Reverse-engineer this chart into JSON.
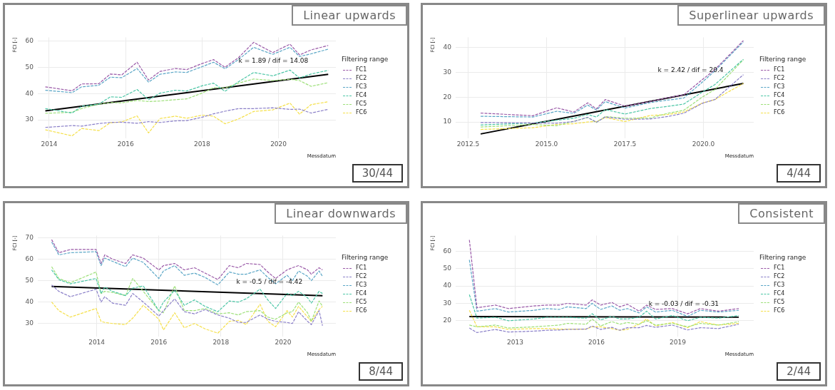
{
  "chart_data": [
    {
      "type": "line",
      "title": "Linear upwards",
      "ylabel": "FCI [-]",
      "xlabel": "Messdatum",
      "legend_title": "Filtering range",
      "legend": "right",
      "grid": true,
      "marker": "none",
      "line_style": "dashed",
      "xlim": [
        2013.7,
        2021.5
      ],
      "ylim": [
        23,
        61.5
      ],
      "xticks": [
        2014,
        2016,
        2018,
        2020
      ],
      "yticks": [
        30,
        40,
        50,
        60
      ],
      "x": [
        2013.9,
        2014.6,
        2014.85,
        2015.3,
        2015.6,
        2015.9,
        2016.3,
        2016.6,
        2016.9,
        2017.3,
        2017.6,
        2018.0,
        2018.3,
        2018.6,
        2018.95,
        2019.35,
        2019.85,
        2020.3,
        2020.55,
        2020.85,
        2021.3
      ],
      "series": [
        {
          "name": "FC1",
          "color": "#9a5aa8",
          "values": [
            42.6,
            41.1,
            43.7,
            43.8,
            47.5,
            47.2,
            52,
            45.2,
            48.5,
            49.6,
            49.2,
            51.5,
            53,
            50.1,
            53.7,
            59.6,
            55.7,
            58.9,
            54.8,
            56.7,
            58.4
          ]
        },
        {
          "name": "FC2",
          "color": "#8a7fc8",
          "values": [
            27.1,
            27.8,
            27.6,
            28.6,
            29.0,
            29.1,
            28.7,
            29.3,
            29.0,
            29.6,
            29.7,
            31.0,
            32.3,
            33.3,
            34.3,
            34.3,
            34.6,
            34.0,
            34.1,
            32.6,
            34.0
          ]
        },
        {
          "name": "FC3",
          "color": "#5aa6c6",
          "values": [
            41.3,
            40.4,
            42.6,
            43.2,
            46.3,
            46.1,
            49.6,
            44.4,
            47.4,
            48.3,
            48.1,
            50.3,
            52.0,
            49.5,
            53.0,
            57.7,
            55.0,
            57.7,
            54.2,
            55.2,
            57.0
          ]
        },
        {
          "name": "FC4",
          "color": "#4cc6a6",
          "values": [
            34.3,
            32.6,
            35.2,
            36.0,
            38.8,
            38.6,
            41.6,
            37.7,
            40.2,
            41.3,
            41.0,
            43.0,
            44.0,
            40.9,
            44.5,
            48.1,
            46.8,
            49.0,
            46.0,
            47.5,
            48.9
          ]
        },
        {
          "name": "FC5",
          "color": "#9ee07a",
          "values": [
            32.5,
            32.9,
            34.3,
            36.0,
            36.6,
            36.5,
            37.4,
            37.0,
            37.2,
            37.7,
            38.0,
            40.2,
            42.3,
            42.2,
            44.0,
            45.6,
            45.0,
            45.5,
            45.0,
            42.8,
            44.2
          ]
        },
        {
          "name": "FC6",
          "color": "#f5e04a",
          "values": [
            26.2,
            23.9,
            26.7,
            25.9,
            28.9,
            29.2,
            31.5,
            25.0,
            30.5,
            31.4,
            30.6,
            31.8,
            31.4,
            28.5,
            30.3,
            33.2,
            33.8,
            36.4,
            32.2,
            35.8,
            36.9
          ]
        },
        {
          "type": "line",
          "line_style": "solid",
          "color": "#000000",
          "x": [
            2013.9,
            2021.3
          ],
          "values": [
            33.4,
            47.4
          ]
        }
      ],
      "annotations": [
        "k = 1.89 / dif = 14.08",
        "30/44"
      ]
    },
    {
      "type": "line",
      "title": "Superlinear upwards",
      "ylabel": "FCI [-]",
      "xlabel": "Messdatum",
      "legend_title": "Filtering range",
      "legend": "right",
      "grid": true,
      "marker": "none",
      "line_style": "dashed",
      "xlim": [
        2012.1,
        2021.6
      ],
      "ylim": [
        3.5,
        44
      ],
      "xticks": [
        2012.5,
        {
          "value": 2015,
          "label": "2015.0"
        },
        2017.5,
        {
          "value": 2020,
          "label": "2020.0"
        }
      ],
      "yticks": [
        10,
        20,
        30,
        40
      ],
      "x": [
        2012.9,
        2014.56,
        2015.32,
        2015.87,
        2016.31,
        2016.59,
        2016.87,
        2017.5,
        2018.3,
        2018.86,
        2019.37,
        2019.96,
        2020.36,
        2021.27
      ],
      "series": [
        {
          "name": "FC1",
          "color": "#9a5aa8",
          "values": [
            13.6,
            12.5,
            15.7,
            14.0,
            17.7,
            15.3,
            19.0,
            16.4,
            18.2,
            19.8,
            20.9,
            27.0,
            31.0,
            42.7
          ]
        },
        {
          "name": "FC2",
          "color": "#8a7fc8",
          "values": [
            9.8,
            9.6,
            9.5,
            10.2,
            11.9,
            9.9,
            12.0,
            11.1,
            11.2,
            12.2,
            13.5,
            17.5,
            19.0,
            29.0
          ]
        },
        {
          "name": "FC3",
          "color": "#5aa6c6",
          "values": [
            12.3,
            12.0,
            14.3,
            13.5,
            16.8,
            14.8,
            18.2,
            15.6,
            17.8,
            18.8,
            19.6,
            26.0,
            30.5,
            42.2
          ]
        },
        {
          "name": "FC4",
          "color": "#4cc6a6",
          "values": [
            8.8,
            9.6,
            10.7,
            11.5,
            13.0,
            12.0,
            15.0,
            13.2,
            15.4,
            16.3,
            17.2,
            22.0,
            25.0,
            35.2
          ]
        },
        {
          "name": "FC5",
          "color": "#9ee07a",
          "values": [
            8.0,
            9.0,
            8.5,
            10.3,
            11.8,
            9.8,
            12.2,
            11.5,
            11.6,
            13.5,
            14.7,
            20.0,
            23.0,
            35.0
          ]
        },
        {
          "name": "FC6",
          "color": "#f5e04a",
          "values": [
            7.0,
            7.7,
            9.0,
            9.3,
            10.0,
            10.2,
            11.8,
            10.2,
            12.6,
            13.0,
            14.0,
            17.6,
            19.0,
            25.5
          ]
        },
        {
          "type": "line",
          "line_style": "solid",
          "color": "#000000",
          "x": [
            2012.9,
            2021.27
          ],
          "values": [
            5.2,
            25.5
          ]
        }
      ],
      "annotations": [
        "k = 2.42 / dif = 20.4",
        "4/44"
      ]
    },
    {
      "type": "line",
      "title": "Linear downwards",
      "ylabel": "FCI [-]",
      "xlabel": "Messdatum",
      "legend_title": "Filtering range",
      "legend": "right",
      "grid": true,
      "marker": "none",
      "line_style": "dashed",
      "xlim": [
        2012.1,
        2021.7
      ],
      "ylim": [
        24,
        71
      ],
      "xticks": [
        2014,
        2016,
        2018,
        2020
      ],
      "yticks": [
        30,
        40,
        50,
        60,
        70
      ],
      "x": [
        2012.55,
        2012.78,
        2013.15,
        2013.98,
        2014.14,
        2014.26,
        2014.51,
        2014.93,
        2015.16,
        2015.5,
        2016.0,
        2016.15,
        2016.51,
        2016.82,
        2017.15,
        2017.49,
        2017.9,
        2018.27,
        2018.56,
        2018.81,
        2019.26,
        2019.51,
        2019.76,
        2020.13,
        2020.3,
        2020.5,
        2020.79,
        2020.91,
        2021.16,
        2021.27
      ],
      "series": [
        {
          "name": "FC1",
          "color": "#9a5aa8",
          "values": [
            69.1,
            63,
            64.5,
            64.5,
            58,
            62,
            60,
            58,
            62,
            60.5,
            55,
            57,
            58,
            55,
            56,
            53.5,
            50.5,
            57,
            56,
            58,
            57.5,
            54,
            51,
            55,
            56,
            57,
            55,
            53,
            56,
            55
          ]
        },
        {
          "name": "FC2",
          "color": "#8a7fc8",
          "values": [
            48,
            45,
            42.5,
            46,
            40,
            42.5,
            39.5,
            38.5,
            44,
            40,
            33.5,
            36,
            41.5,
            35.5,
            34.5,
            36.5,
            34,
            32.5,
            30.5,
            30.5,
            34,
            32,
            31,
            30.5,
            30,
            35.5,
            31,
            29.5,
            36,
            29
          ]
        },
        {
          "name": "FC3",
          "color": "#5aa6c6",
          "values": [
            68,
            62,
            63,
            63.5,
            57,
            60.5,
            59,
            56.5,
            60.5,
            58.5,
            51,
            54.5,
            57,
            52.5,
            53.5,
            51.5,
            48,
            54,
            53,
            53,
            55,
            51.5,
            48.5,
            52.5,
            50,
            54.5,
            52,
            50,
            54.5,
            52
          ]
        },
        {
          "name": "FC4",
          "color": "#4cc6a6",
          "values": [
            55,
            50.5,
            48.5,
            51,
            44,
            47,
            45,
            43,
            46.5,
            47.5,
            36,
            40,
            45.5,
            38.5,
            41,
            38,
            35.5,
            40.5,
            40,
            41.5,
            46,
            41,
            37,
            44,
            43,
            45,
            42,
            39.5,
            45,
            44
          ]
        },
        {
          "name": "FC5",
          "color": "#9ee07a",
          "values": [
            56.5,
            51,
            49,
            54,
            44,
            45,
            44.5,
            43,
            51,
            45,
            36,
            35,
            47.5,
            36,
            36,
            37,
            34.5,
            35,
            34,
            35.5,
            36,
            33,
            32,
            35,
            35.5,
            40,
            35,
            31,
            40.5,
            38
          ]
        },
        {
          "name": "FC6",
          "color": "#f5e04a",
          "values": [
            40,
            36,
            33,
            37,
            31,
            30.5,
            30,
            29.5,
            32.5,
            38.5,
            32,
            27,
            35,
            28,
            30,
            27.5,
            25.5,
            31,
            31.5,
            29.5,
            39,
            31,
            28.5,
            36,
            33,
            38,
            33,
            31,
            36.5,
            38
          ]
        },
        {
          "type": "line",
          "line_style": "solid",
          "color": "#000000",
          "x": [
            2012.55,
            2021.27
          ],
          "values": [
            47.3,
            43.0
          ]
        }
      ],
      "annotations": [
        "k = -0.5 / dif = -4.42",
        "8/44"
      ]
    },
    {
      "type": "line",
      "title": "Consistent",
      "ylabel": "FCI [-]",
      "xlabel": "Messdatum",
      "legend_title": "Filtering range",
      "legend": "right",
      "grid": true,
      "marker": "none",
      "line_style": "dashed",
      "xlim": [
        2010.8,
        2021.8
      ],
      "ylim": [
        11,
        69
      ],
      "xticks": [
        2013,
        2016,
        2019
      ],
      "yticks": [
        20,
        30,
        40,
        50,
        60
      ],
      "x": [
        2011.31,
        2011.59,
        2012.27,
        2012.75,
        2013.69,
        2014.16,
        2014.63,
        2014.92,
        2015.62,
        2015.84,
        2016.15,
        2016.57,
        2016.86,
        2017.14,
        2017.57,
        2017.85,
        2018.18,
        2018.8,
        2019.36,
        2019.83,
        2020.5,
        2021.25
      ],
      "series": [
        {
          "name": "FC1",
          "color": "#9a5aa8",
          "values": [
            66.5,
            27.5,
            29,
            27,
            28.5,
            29,
            29,
            30,
            29,
            32,
            29,
            30.5,
            28,
            29.5,
            25.5,
            29,
            26.5,
            27,
            24,
            27,
            25.5,
            27
          ]
        },
        {
          "name": "FC2",
          "color": "#8a7fc8",
          "values": [
            15.8,
            13.2,
            15,
            13.5,
            14,
            14.5,
            14.7,
            15,
            15.2,
            17,
            15,
            16.2,
            14.5,
            16,
            16,
            17.3,
            16.2,
            17.5,
            14.7,
            16,
            15.5,
            18
          ]
        },
        {
          "name": "FC3",
          "color": "#5aa6c6",
          "values": [
            55,
            25.5,
            27,
            25,
            26,
            27,
            26.5,
            28,
            27,
            30,
            26.5,
            28.5,
            26,
            27,
            24.5,
            28,
            25,
            26,
            22.5,
            26,
            25,
            26
          ]
        },
        {
          "name": "FC4",
          "color": "#4cc6a6",
          "values": [
            35,
            21.5,
            22,
            20,
            21,
            22,
            22,
            22,
            21.5,
            24,
            20.5,
            22.5,
            21,
            21,
            22,
            25.5,
            21,
            23,
            20,
            22,
            21.5,
            23
          ]
        },
        {
          "name": "FC5",
          "color": "#9ee07a",
          "values": [
            17.5,
            16.5,
            17.5,
            15.8,
            16.5,
            17,
            17.5,
            18.5,
            18,
            21,
            17,
            19.5,
            18,
            19,
            18,
            20,
            17.5,
            18.5,
            16.5,
            18.5,
            17.5,
            19.5
          ]
        },
        {
          "name": "FC6",
          "color": "#f5e04a",
          "values": [
            26,
            16.5,
            16.5,
            15,
            15.5,
            15.5,
            15.2,
            15.2,
            15.2,
            16.5,
            16.5,
            15.5,
            14.5,
            15,
            18,
            21,
            17,
            19,
            16,
            19.5,
            17.5,
            18.5
          ]
        },
        {
          "type": "line",
          "line_style": "solid",
          "color": "#000000",
          "x": [
            2011.31,
            2021.25
          ],
          "values": [
            22.4,
            22.1
          ]
        }
      ],
      "annotations": [
        "k = -0.03 / dif = -0.31",
        "2/44"
      ]
    }
  ]
}
